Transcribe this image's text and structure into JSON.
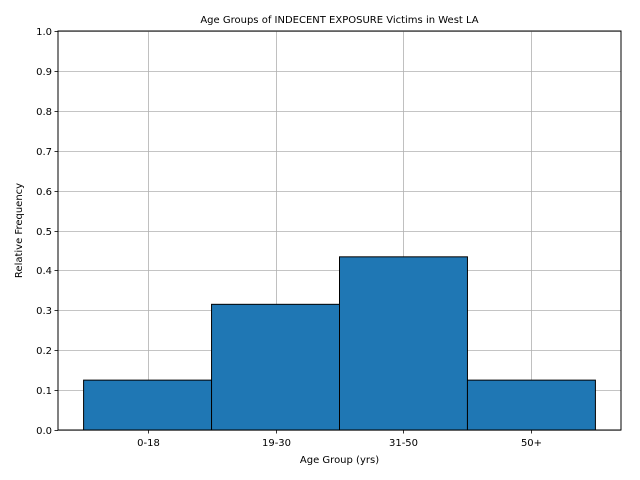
{
  "chart_data": {
    "type": "bar",
    "title": "Age Groups of INDECENT EXPOSURE Victims in West LA",
    "xlabel": "Age Group (yrs)",
    "ylabel": "Relative Frequency",
    "categories": [
      "0-18",
      "19-30",
      "31-50",
      "50+"
    ],
    "values": [
      0.125,
      0.315,
      0.434,
      0.125
    ],
    "ylim": [
      0,
      1.0
    ],
    "yticks": [
      "0.0",
      "0.1",
      "0.2",
      "0.3",
      "0.4",
      "0.5",
      "0.6",
      "0.7",
      "0.8",
      "0.9",
      "1.0"
    ],
    "grid": true,
    "bar_color": "#1f77b4",
    "bar_edge_color": "#000000",
    "grid_color": "#b0b0b0"
  }
}
